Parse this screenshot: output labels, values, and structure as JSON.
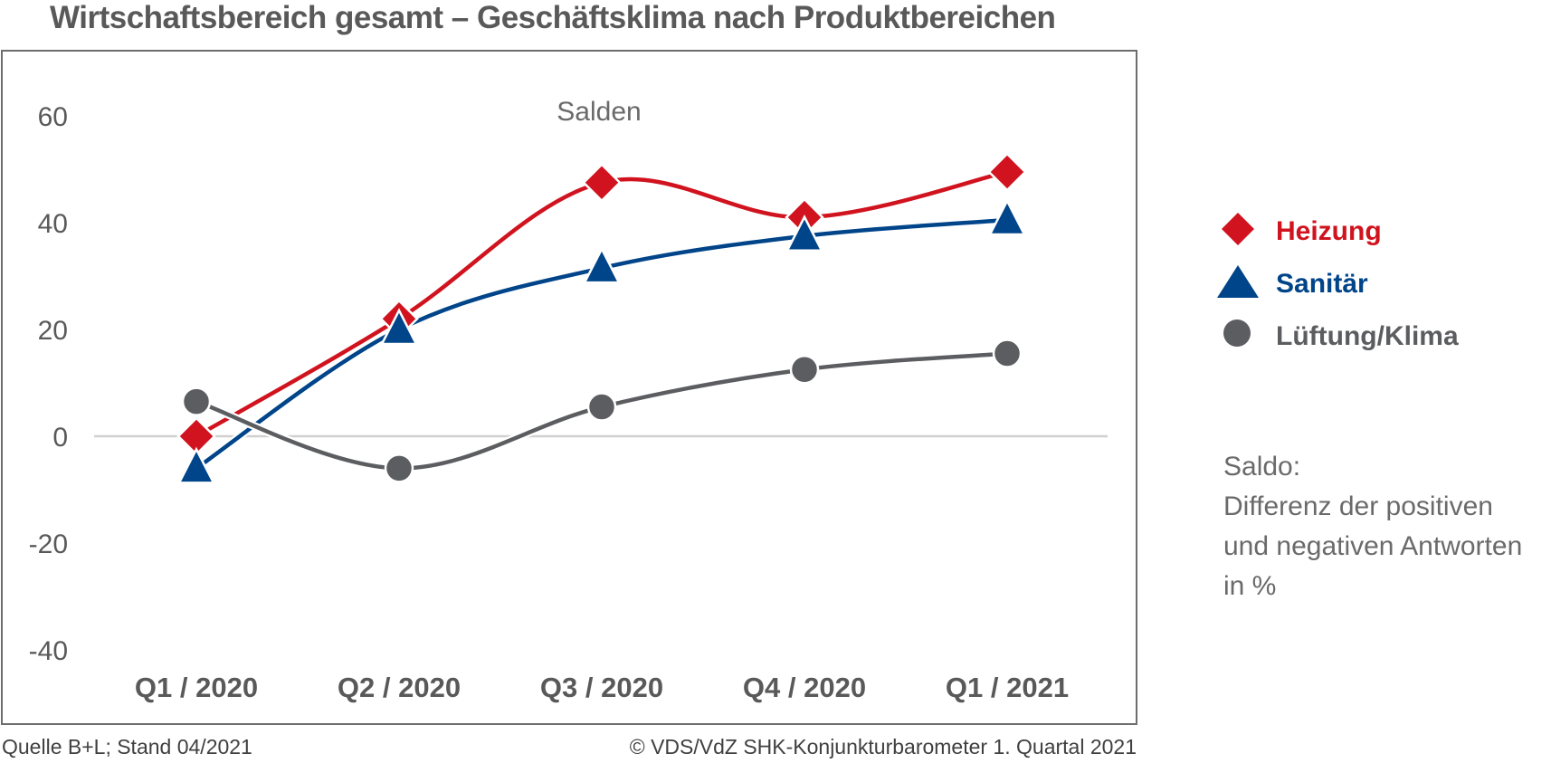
{
  "title": "Wirtschaftsbereich gesamt – Geschäftsklima nach Produktbereichen",
  "chart_data": {
    "type": "line",
    "title": "Wirtschaftsbereich gesamt – Geschäftsklima nach Produktbereichen",
    "subtitle": "Salden",
    "xlabel": "",
    "ylabel": "",
    "categories": [
      "Q1 / 2020",
      "Q2 / 2020",
      "Q3 / 2020",
      "Q4 / 2020",
      "Q1 / 2021"
    ],
    "ylim": [
      -40,
      60
    ],
    "yticks": [
      "60",
      "40",
      "20",
      "0",
      "-20",
      "-40"
    ],
    "grid": false,
    "zero_line": true,
    "legend_position": "right",
    "series": [
      {
        "name": "Heizung",
        "marker": "diamond",
        "color": "#d0131e",
        "values": [
          0,
          22,
          47.5,
          41,
          49.5
        ]
      },
      {
        "name": "Sanitär",
        "marker": "triangle",
        "color": "#004489",
        "values": [
          -6,
          20,
          31.5,
          37.5,
          40.5
        ]
      },
      {
        "name": "Lüftung/Klima",
        "marker": "circle",
        "color": "#5c5d61",
        "values": [
          6.5,
          -6,
          5.5,
          12.5,
          15.5
        ]
      }
    ]
  },
  "note": {
    "line1": "Saldo:",
    "line2": "Differenz der positiven",
    "line3": "und negativen Antworten",
    "line4": "in %"
  },
  "footer": {
    "source": "Quelle B+L; Stand 04/2021",
    "copyright": "© VDS/VdZ SHK-Konjunkturbarometer 1. Quartal 2021"
  }
}
